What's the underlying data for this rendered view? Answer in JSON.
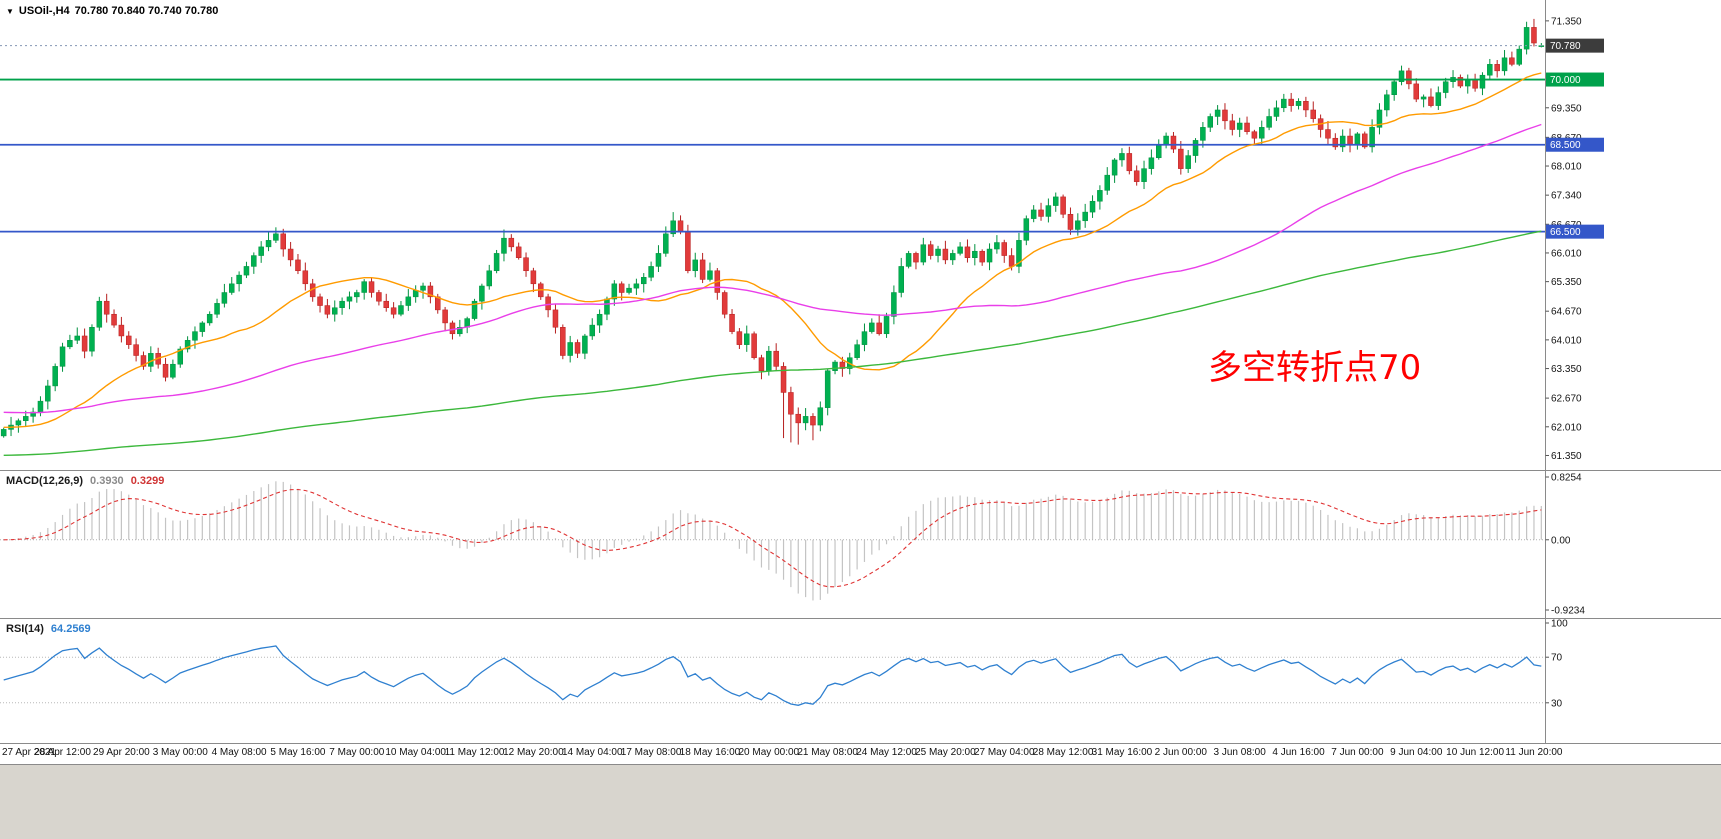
{
  "header": {
    "menu_icon": "▼",
    "symbol": "USOil-,H4",
    "ohlc": "70.780 70.840 70.740 70.780"
  },
  "annotation": {
    "text": "多空转折点70",
    "color": "#ff0000"
  },
  "chart_data": {
    "type": "candlestick",
    "symbol": "USOil-",
    "timeframe": "H4",
    "price": {
      "ylim": [
        61.2,
        71.6
      ],
      "first_open": 61.8,
      "closes": [
        61.95,
        62.05,
        62.15,
        62.25,
        62.35,
        62.6,
        62.95,
        63.4,
        63.85,
        64.0,
        64.1,
        63.75,
        64.3,
        64.9,
        64.6,
        64.35,
        64.1,
        63.9,
        63.65,
        63.4,
        63.7,
        63.45,
        63.15,
        63.45,
        63.8,
        64.0,
        64.2,
        64.4,
        64.6,
        64.85,
        65.1,
        65.3,
        65.5,
        65.7,
        65.95,
        66.15,
        66.3,
        66.45,
        66.1,
        65.85,
        65.6,
        65.3,
        65.0,
        64.8,
        64.6,
        64.75,
        64.9,
        65.0,
        65.1,
        65.35,
        65.1,
        64.9,
        64.75,
        64.6,
        64.8,
        65.0,
        65.15,
        65.25,
        65.0,
        64.7,
        64.4,
        64.15,
        64.3,
        64.5,
        64.9,
        65.25,
        65.6,
        66.0,
        66.35,
        66.15,
        65.9,
        65.6,
        65.3,
        65.0,
        64.7,
        64.3,
        63.65,
        63.95,
        63.7,
        64.1,
        64.35,
        64.6,
        64.95,
        65.3,
        65.1,
        65.2,
        65.3,
        65.45,
        65.7,
        66.0,
        66.45,
        66.75,
        66.5,
        65.6,
        65.85,
        65.4,
        65.6,
        65.1,
        64.6,
        64.2,
        63.9,
        64.15,
        63.6,
        63.3,
        63.75,
        63.4,
        62.8,
        62.3,
        62.1,
        62.25,
        62.05,
        62.45,
        63.3,
        63.5,
        63.35,
        63.6,
        63.9,
        64.2,
        64.4,
        64.15,
        64.55,
        65.1,
        65.7,
        66.0,
        65.8,
        66.2,
        65.95,
        66.1,
        65.85,
        66.0,
        66.15,
        65.9,
        66.05,
        65.8,
        66.1,
        66.25,
        65.95,
        65.7,
        66.3,
        66.8,
        67.0,
        66.85,
        67.1,
        67.3,
        66.9,
        66.55,
        66.75,
        66.95,
        67.2,
        67.45,
        67.8,
        68.15,
        68.3,
        67.9,
        67.65,
        67.95,
        68.2,
        68.5,
        68.7,
        68.4,
        67.95,
        68.25,
        68.6,
        68.9,
        69.15,
        69.3,
        69.05,
        68.85,
        69.0,
        68.8,
        68.65,
        68.9,
        69.15,
        69.35,
        69.55,
        69.4,
        69.5,
        69.3,
        69.1,
        68.85,
        68.65,
        68.45,
        68.7,
        68.5,
        68.75,
        68.45,
        68.9,
        69.3,
        69.65,
        69.95,
        70.2,
        69.9,
        69.55,
        69.6,
        69.4,
        69.7,
        69.95,
        70.05,
        69.85,
        70.0,
        69.8,
        70.1,
        70.35,
        70.2,
        70.5,
        70.35,
        70.7,
        71.2,
        70.84,
        70.78
      ],
      "wick": {
        "base": 0.04,
        "var": 0.16
      },
      "overrides": {
        "13": {
          "high": 65.0
        },
        "37": {
          "high": 66.6
        },
        "68": {
          "high": 66.55
        },
        "91": {
          "high": 66.95
        },
        "106": {
          "low": 61.75
        },
        "107": {
          "low": 61.65
        },
        "108": {
          "low": 61.6
        },
        "110": {
          "low": 61.7
        },
        "143": {
          "high": 67.4
        },
        "152": {
          "high": 68.42
        },
        "190": {
          "high": 70.32
        },
        "207": {
          "high": 71.33
        },
        "209": {
          "open": 70.78,
          "high": 70.84,
          "low": 70.74,
          "close": 70.78
        }
      },
      "colors": {
        "up": "#00b050",
        "up_border": "#00913f",
        "down": "#e13b3b",
        "down_border": "#b61f1f"
      },
      "axis_labels": [
        [
          71.35,
          "71.350"
        ],
        [
          69.35,
          "69.350"
        ],
        [
          68.67,
          "68.670"
        ],
        [
          68.01,
          "68.010"
        ],
        [
          67.34,
          "67.340"
        ],
        [
          66.67,
          "66.670"
        ],
        [
          66.01,
          "66.010"
        ],
        [
          65.35,
          "65.350"
        ],
        [
          64.67,
          "64.670"
        ],
        [
          64.01,
          "64.010"
        ],
        [
          63.35,
          "63.350"
        ],
        [
          62.67,
          "62.670"
        ],
        [
          62.01,
          "62.010"
        ],
        [
          61.35,
          "61.350"
        ]
      ],
      "badges": [
        [
          70.78,
          "70.780",
          "#3c3c3c"
        ],
        [
          70.0,
          "70.000",
          "#00a14b"
        ],
        [
          68.5,
          "68.500",
          "#3457c9"
        ],
        [
          66.5,
          "66.500",
          "#3457c9"
        ]
      ],
      "hlines": [
        [
          70.0,
          "#00a14b"
        ],
        [
          68.5,
          "#3457c9"
        ],
        [
          66.5,
          "#3457c9"
        ]
      ],
      "last_price_line": {
        "value": 70.78,
        "color": "#8296b4"
      },
      "moving_averages": [
        {
          "name": "ma-fast",
          "period": 20,
          "prepad": 62.0,
          "color": "#ff9b00"
        },
        {
          "name": "ma-mid",
          "period": 68,
          "prepad": 62.35,
          "color": "#e93fe9"
        },
        {
          "name": "ma-slow",
          "period": 180,
          "prepad": 61.35,
          "color": "#3cb83c"
        }
      ]
    },
    "macd": {
      "label": "MACD(12,26,9)",
      "main_value": "0.3930",
      "signal_value": "0.3299",
      "fast": 12,
      "slow": 26,
      "signal": 9,
      "ylim": [
        -0.9234,
        0.8254
      ],
      "axis_labels": [
        [
          0.8254,
          "0.8254"
        ],
        [
          0,
          "0.00"
        ],
        [
          -0.9234,
          "-0.9234"
        ]
      ],
      "hist_color": "#c4c4c4",
      "signal_color": "#e03434"
    },
    "rsi": {
      "label": "RSI(14)",
      "value": "64.2569",
      "period": 14,
      "ylim": [
        0,
        100
      ],
      "levels": [
        70,
        30
      ],
      "axis_labels": [
        [
          100,
          "100"
        ],
        [
          70,
          "70"
        ],
        [
          30,
          "30"
        ]
      ],
      "line_color": "#2f80d0"
    },
    "time_labels": [
      "27 Apr 2021",
      "28 Apr 12:00",
      "29 Apr 20:00",
      "3 May 00:00",
      "4 May 08:00",
      "5 May 16:00",
      "7 May 00:00",
      "10 May 04:00",
      "11 May 12:00",
      "12 May 20:00",
      "14 May 04:00",
      "17 May 08:00",
      "18 May 16:00",
      "20 May 00:00",
      "21 May 08:00",
      "24 May 12:00",
      "25 May 20:00",
      "27 May 04:00",
      "28 May 12:00",
      "31 May 16:00",
      "2 Jun 00:00",
      "3 Jun 08:00",
      "4 Jun 16:00",
      "7 Jun 00:00",
      "9 Jun 04:00",
      "10 Jun 12:00",
      "11 Jun 20:00"
    ],
    "label_every": 8
  }
}
